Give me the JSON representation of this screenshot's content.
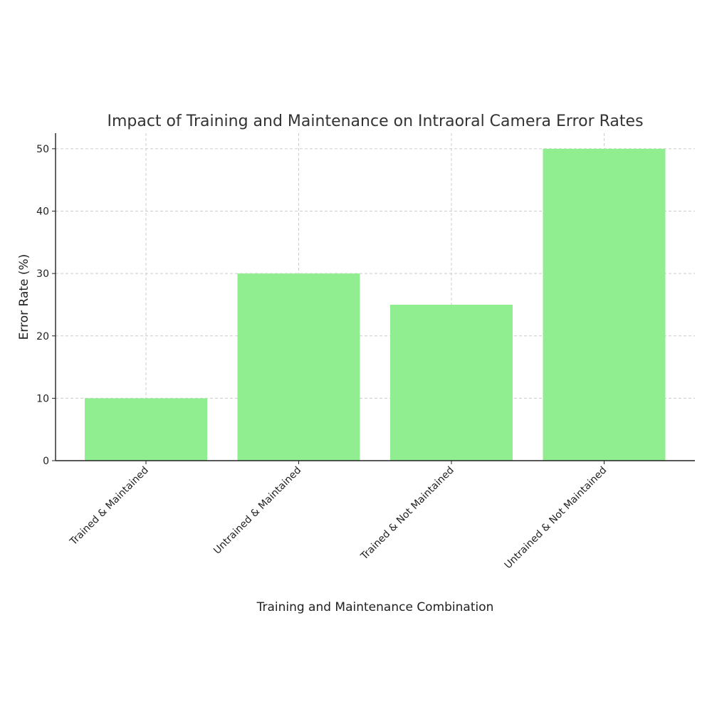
{
  "chart_data": {
    "type": "bar",
    "title": "Impact of Training and Maintenance on Intraoral Camera Error Rates",
    "xlabel": "Training and Maintenance Combination",
    "ylabel": "Error Rate (%)",
    "categories": [
      "Trained & Maintained",
      "Untrained & Maintained",
      "Trained & Not Maintained",
      "Untrained & Not Maintained"
    ],
    "values": [
      10,
      30,
      25,
      50
    ],
    "ylim": [
      0,
      52.5
    ],
    "yticks": [
      0,
      10,
      20,
      30,
      40,
      50
    ],
    "grid": true,
    "bar_color": "#90ee90"
  }
}
